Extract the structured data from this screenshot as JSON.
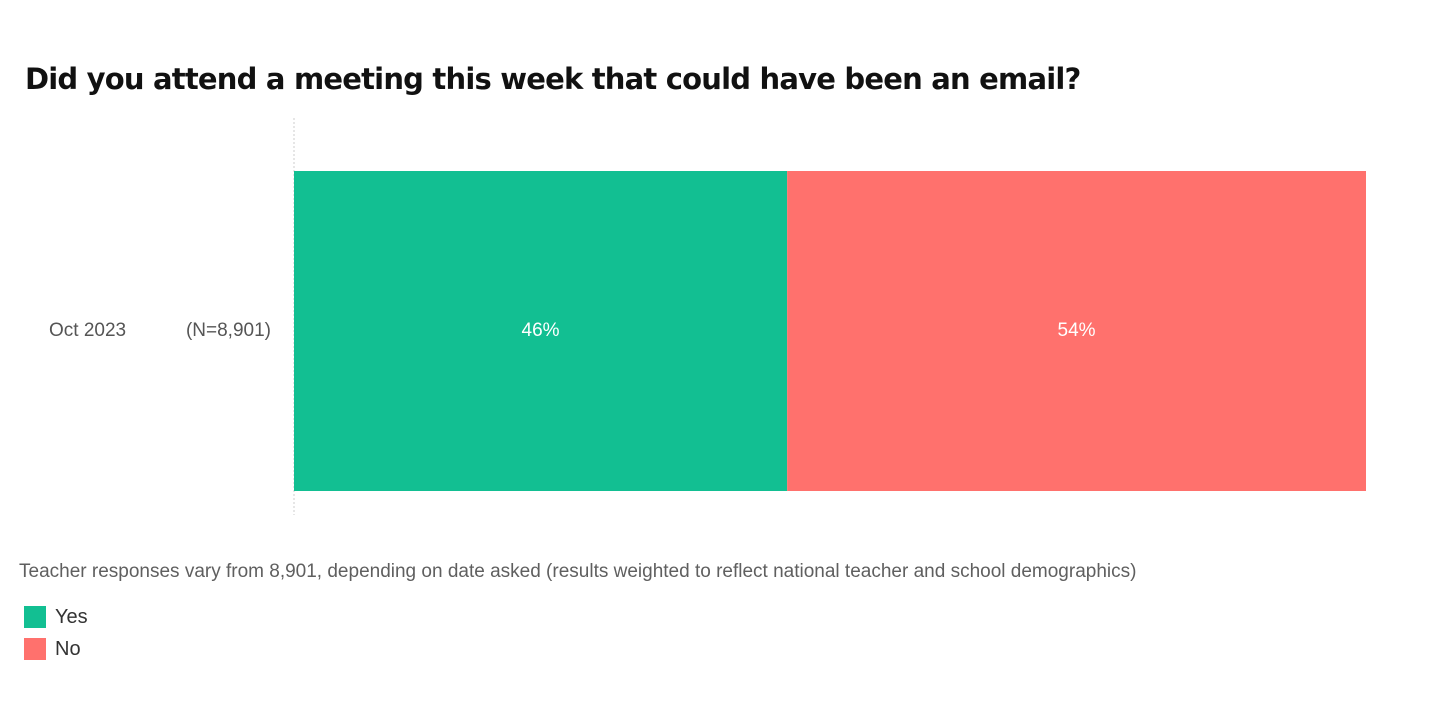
{
  "chart_data": {
    "type": "bar",
    "orientation": "horizontal",
    "stacked": true,
    "title": "Did you attend a meeting this week that could have been an email?",
    "categories": [
      {
        "label": "Oct 2023",
        "sample": "(N=8,901)"
      }
    ],
    "series": [
      {
        "name": "Yes",
        "values": [
          46
        ],
        "labels": [
          "46%"
        ],
        "color": "#12BF92"
      },
      {
        "name": "No",
        "values": [
          54
        ],
        "labels": [
          "54%"
        ],
        "color": "#FF716D"
      }
    ],
    "xlim": [
      0,
      100
    ],
    "grid": false,
    "legend_position": "bottom-left",
    "footnote": "Teacher responses vary from 8,901, depending on date asked (results weighted to reflect national teacher and school demographics)"
  }
}
